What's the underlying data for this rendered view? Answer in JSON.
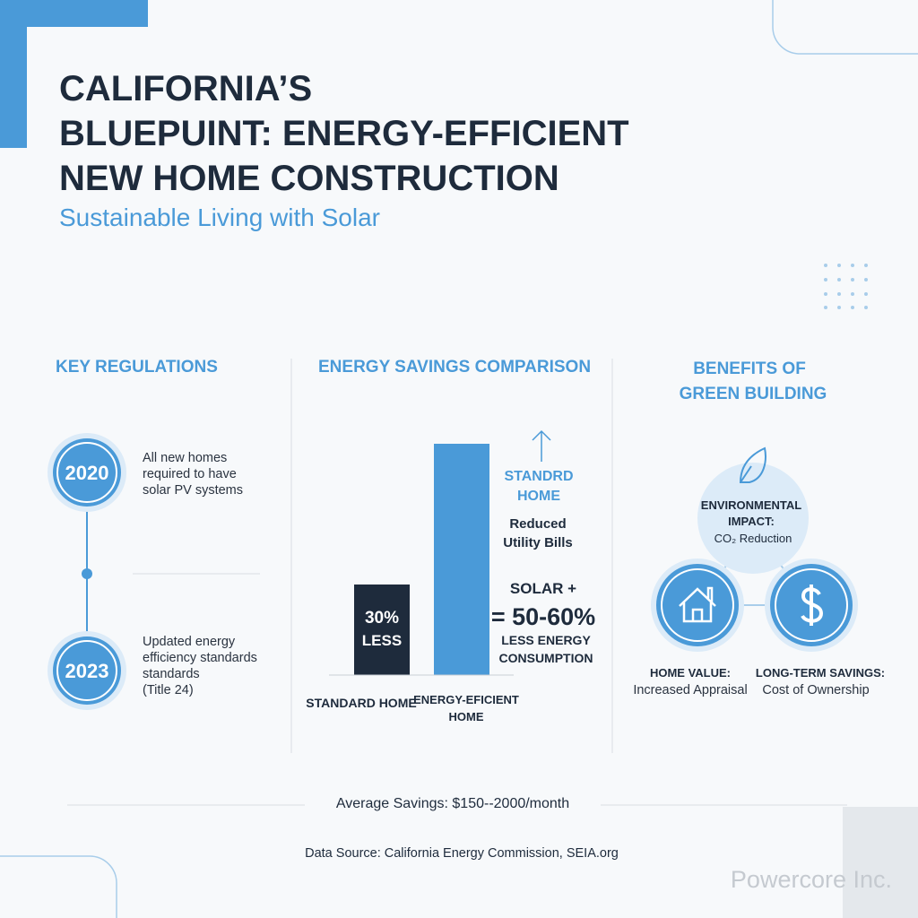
{
  "header": {
    "title_lines": [
      "CALIFORNIA’S",
      "BLUEPUINT: ENERGY-EFFICIENT",
      "NEW HOME CONSTRUCTION"
    ],
    "subtitle": "Sustainable Living with Solar"
  },
  "regulations": {
    "heading": "KEY REGULATIONS",
    "items": [
      {
        "year": "2020",
        "lines": [
          "All new homes",
          "required to have",
          "solar PV systems"
        ]
      },
      {
        "year": "2023",
        "lines": [
          "Updated energy",
          "efficiency standards",
          "standards",
          "(Title 24)"
        ]
      }
    ]
  },
  "savings": {
    "heading": "ENERGY SAVINGS COMPARISON",
    "bar_label_lines": [
      "30%",
      "LESS"
    ],
    "categories": [
      [
        "STANDARD HOME"
      ],
      [
        "ENERGY-EFICIENT",
        "HOME"
      ]
    ],
    "note_heading_lines": [
      "STANDRD",
      "HOME"
    ],
    "note_lines": [
      "Reduced",
      "Utility Bills"
    ],
    "solar_line": "SOLAR +",
    "result": "= 50-60%",
    "result_lines": [
      "LESS ENERGY",
      "CONSUMPTION"
    ]
  },
  "benefits": {
    "heading_lines": [
      "BENEFITS OF",
      "GREEN BUILDING"
    ],
    "environment_lines": [
      "ENVIRONMENTAL",
      "IMPACT:",
      "CO₂ Reduction"
    ],
    "home_value": [
      "HOME VALUE:",
      "Increased Appraisal"
    ],
    "long_term": [
      "LONG-TERM SAVINGS:",
      "Cost of Ownership"
    ]
  },
  "footer": {
    "average": "Average Savings: $150--2000/month",
    "source": "Data Source: California Energy Commission, SEIA.org",
    "brand": "Powercore Inc."
  }
}
